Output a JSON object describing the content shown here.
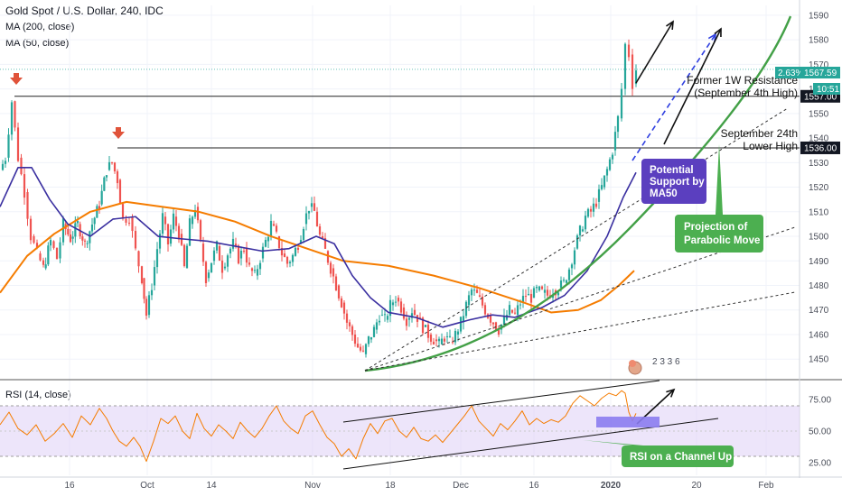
{
  "header": {
    "title": "Gold Spot / U.S. Dollar, 240, IDC",
    "ma200": "MA (200, close)",
    "ma50": "MA (50, close)",
    "rsi": "RSI (14, close)"
  },
  "chart_data": [
    {
      "type": "candlestick",
      "title": "Gold Spot / U.S. Dollar, 240, IDC",
      "x_ticks": [
        "16",
        "Oct",
        "14",
        "Nov",
        "18",
        "Dec",
        "16",
        "2020",
        "20",
        "Feb"
      ],
      "y_ticks": [
        1450,
        1460,
        1470,
        1480,
        1490,
        1500,
        1510,
        1520,
        1530,
        1540,
        1550,
        1560,
        1570,
        1580,
        1590
      ],
      "ylim": [
        1442,
        1594
      ],
      "series": [
        {
          "name": "MA (200, close)",
          "color": "#f57c00"
        },
        {
          "name": "MA (50, close)",
          "color": "#3a2fa0"
        }
      ],
      "price_path": [
        {
          "x": 0,
          "y": 1527
        },
        {
          "x": 6,
          "y": 1532
        },
        {
          "x": 13,
          "y": 1555
        },
        {
          "x": 20,
          "y": 1532
        },
        {
          "x": 27,
          "y": 1518
        },
        {
          "x": 34,
          "y": 1500
        },
        {
          "x": 41,
          "y": 1493
        },
        {
          "x": 48,
          "y": 1487
        },
        {
          "x": 56,
          "y": 1498
        },
        {
          "x": 63,
          "y": 1491
        },
        {
          "x": 70,
          "y": 1505
        },
        {
          "x": 78,
          "y": 1499
        },
        {
          "x": 86,
          "y": 1505
        },
        {
          "x": 94,
          "y": 1497
        },
        {
          "x": 102,
          "y": 1505
        },
        {
          "x": 110,
          "y": 1513
        },
        {
          "x": 118,
          "y": 1527
        },
        {
          "x": 124,
          "y": 1530
        },
        {
          "x": 130,
          "y": 1523
        },
        {
          "x": 136,
          "y": 1507
        },
        {
          "x": 143,
          "y": 1508
        },
        {
          "x": 150,
          "y": 1494
        },
        {
          "x": 157,
          "y": 1483
        },
        {
          "x": 162,
          "y": 1468
        },
        {
          "x": 168,
          "y": 1480
        },
        {
          "x": 174,
          "y": 1495
        },
        {
          "x": 180,
          "y": 1508
        },
        {
          "x": 186,
          "y": 1497
        },
        {
          "x": 192,
          "y": 1508
        },
        {
          "x": 198,
          "y": 1501
        },
        {
          "x": 204,
          "y": 1487
        },
        {
          "x": 210,
          "y": 1505
        },
        {
          "x": 216,
          "y": 1512
        },
        {
          "x": 222,
          "y": 1497
        },
        {
          "x": 228,
          "y": 1483
        },
        {
          "x": 234,
          "y": 1490
        },
        {
          "x": 240,
          "y": 1496
        },
        {
          "x": 246,
          "y": 1487
        },
        {
          "x": 252,
          "y": 1493
        },
        {
          "x": 258,
          "y": 1497
        },
        {
          "x": 264,
          "y": 1491
        },
        {
          "x": 270,
          "y": 1495
        },
        {
          "x": 276,
          "y": 1487
        },
        {
          "x": 282,
          "y": 1484
        },
        {
          "x": 288,
          "y": 1491
        },
        {
          "x": 294,
          "y": 1498
        },
        {
          "x": 300,
          "y": 1505
        },
        {
          "x": 306,
          "y": 1500
        },
        {
          "x": 312,
          "y": 1493
        },
        {
          "x": 318,
          "y": 1489
        },
        {
          "x": 324,
          "y": 1492
        },
        {
          "x": 330,
          "y": 1497
        },
        {
          "x": 336,
          "y": 1505
        },
        {
          "x": 342,
          "y": 1512
        },
        {
          "x": 348,
          "y": 1510
        },
        {
          "x": 354,
          "y": 1500
        },
        {
          "x": 360,
          "y": 1494
        },
        {
          "x": 366,
          "y": 1487
        },
        {
          "x": 372,
          "y": 1480
        },
        {
          "x": 378,
          "y": 1473
        },
        {
          "x": 384,
          "y": 1465
        },
        {
          "x": 390,
          "y": 1460
        },
        {
          "x": 396,
          "y": 1455
        },
        {
          "x": 402,
          "y": 1452
        },
        {
          "x": 408,
          "y": 1458
        },
        {
          "x": 414,
          "y": 1462
        },
        {
          "x": 420,
          "y": 1468
        },
        {
          "x": 426,
          "y": 1466
        },
        {
          "x": 432,
          "y": 1472
        },
        {
          "x": 438,
          "y": 1475
        },
        {
          "x": 444,
          "y": 1471
        },
        {
          "x": 450,
          "y": 1466
        },
        {
          "x": 456,
          "y": 1470
        },
        {
          "x": 462,
          "y": 1467
        },
        {
          "x": 468,
          "y": 1463
        },
        {
          "x": 474,
          "y": 1460
        },
        {
          "x": 480,
          "y": 1458
        },
        {
          "x": 486,
          "y": 1456
        },
        {
          "x": 492,
          "y": 1459
        },
        {
          "x": 498,
          "y": 1457
        },
        {
          "x": 504,
          "y": 1460
        },
        {
          "x": 510,
          "y": 1465
        },
        {
          "x": 516,
          "y": 1472
        },
        {
          "x": 522,
          "y": 1478
        },
        {
          "x": 528,
          "y": 1476
        },
        {
          "x": 534,
          "y": 1472
        },
        {
          "x": 540,
          "y": 1468
        },
        {
          "x": 546,
          "y": 1465
        },
        {
          "x": 552,
          "y": 1462
        },
        {
          "x": 558,
          "y": 1466
        },
        {
          "x": 564,
          "y": 1470
        },
        {
          "x": 570,
          "y": 1468
        },
        {
          "x": 576,
          "y": 1473
        },
        {
          "x": 582,
          "y": 1476
        },
        {
          "x": 588,
          "y": 1475
        },
        {
          "x": 594,
          "y": 1478
        },
        {
          "x": 600,
          "y": 1477
        },
        {
          "x": 606,
          "y": 1476
        },
        {
          "x": 612,
          "y": 1478
        },
        {
          "x": 618,
          "y": 1479
        },
        {
          "x": 624,
          "y": 1481
        },
        {
          "x": 630,
          "y": 1487
        },
        {
          "x": 636,
          "y": 1495
        },
        {
          "x": 642,
          "y": 1502
        },
        {
          "x": 648,
          "y": 1508
        },
        {
          "x": 654,
          "y": 1510
        },
        {
          "x": 660,
          "y": 1514
        },
        {
          "x": 666,
          "y": 1520
        },
        {
          "x": 672,
          "y": 1527
        },
        {
          "x": 678,
          "y": 1535
        },
        {
          "x": 684,
          "y": 1548
        },
        {
          "x": 688,
          "y": 1560
        },
        {
          "x": 692,
          "y": 1578
        },
        {
          "x": 696,
          "y": 1574
        },
        {
          "x": 700,
          "y": 1562
        },
        {
          "x": 704,
          "y": 1568
        }
      ],
      "ma200_path": [
        {
          "x": 0,
          "y": 1477
        },
        {
          "x": 30,
          "y": 1492
        },
        {
          "x": 60,
          "y": 1501
        },
        {
          "x": 100,
          "y": 1510
        },
        {
          "x": 140,
          "y": 1514
        },
        {
          "x": 180,
          "y": 1512
        },
        {
          "x": 220,
          "y": 1510
        },
        {
          "x": 260,
          "y": 1506
        },
        {
          "x": 300,
          "y": 1500
        },
        {
          "x": 340,
          "y": 1495
        },
        {
          "x": 380,
          "y": 1490
        },
        {
          "x": 430,
          "y": 1488
        },
        {
          "x": 480,
          "y": 1484
        },
        {
          "x": 530,
          "y": 1479
        },
        {
          "x": 580,
          "y": 1473
        },
        {
          "x": 610,
          "y": 1469
        },
        {
          "x": 640,
          "y": 1470
        },
        {
          "x": 665,
          "y": 1474
        },
        {
          "x": 685,
          "y": 1480
        },
        {
          "x": 702,
          "y": 1486
        }
      ],
      "ma50_path": [
        {
          "x": 0,
          "y": 1512
        },
        {
          "x": 20,
          "y": 1528
        },
        {
          "x": 35,
          "y": 1528
        },
        {
          "x": 55,
          "y": 1515
        },
        {
          "x": 75,
          "y": 1505
        },
        {
          "x": 100,
          "y": 1500
        },
        {
          "x": 125,
          "y": 1507
        },
        {
          "x": 150,
          "y": 1508
        },
        {
          "x": 175,
          "y": 1500
        },
        {
          "x": 200,
          "y": 1499
        },
        {
          "x": 230,
          "y": 1498
        },
        {
          "x": 260,
          "y": 1496
        },
        {
          "x": 290,
          "y": 1494
        },
        {
          "x": 320,
          "y": 1495
        },
        {
          "x": 350,
          "y": 1500
        },
        {
          "x": 370,
          "y": 1497
        },
        {
          "x": 390,
          "y": 1484
        },
        {
          "x": 410,
          "y": 1475
        },
        {
          "x": 430,
          "y": 1469
        },
        {
          "x": 460,
          "y": 1467
        },
        {
          "x": 490,
          "y": 1463
        },
        {
          "x": 520,
          "y": 1466
        },
        {
          "x": 545,
          "y": 1468
        },
        {
          "x": 570,
          "y": 1467
        },
        {
          "x": 600,
          "y": 1471
        },
        {
          "x": 625,
          "y": 1476
        },
        {
          "x": 650,
          "y": 1486
        },
        {
          "x": 672,
          "y": 1500
        },
        {
          "x": 690,
          "y": 1516
        },
        {
          "x": 704,
          "y": 1526
        }
      ],
      "levels": [
        {
          "label": "1557.00",
          "value": 1557
        },
        {
          "label": "1536.00",
          "value": 1536
        }
      ],
      "current_price_label": "1567.59",
      "change_label": "2.63%",
      "countdown_label": "10:51",
      "annotations": {
        "resistance_1": "Former 1W Resistance",
        "resistance_2": "(September 4th High)",
        "lower_high_1": "September 24th",
        "lower_high_2": "Lower High",
        "support_1": "Potential",
        "support_2": "Support by",
        "support_3": "MA50",
        "parabolic_1": "Projection of",
        "parabolic_2": "Parabolic Move",
        "events": "2 3 3 6"
      },
      "colors": {
        "up": "#26a69a",
        "down": "#ef5350",
        "ma200": "#f57c00",
        "ma50": "#3a2fa0",
        "parabolic": "#43a047",
        "support_box": "#5b3fbf",
        "parabolic_box": "#4caf50",
        "arrow_marker": "#e0533a",
        "price_tag": "#26a69a"
      }
    },
    {
      "type": "line",
      "title": "RSI (14, close)",
      "y_ticks": [
        25,
        50,
        75
      ],
      "ylim": [
        15,
        90
      ],
      "band": [
        30,
        70
      ],
      "rsi_path": [
        {
          "x": 0,
          "y": 55
        },
        {
          "x": 10,
          "y": 65
        },
        {
          "x": 20,
          "y": 52
        },
        {
          "x": 30,
          "y": 47
        },
        {
          "x": 40,
          "y": 55
        },
        {
          "x": 50,
          "y": 42
        },
        {
          "x": 60,
          "y": 48
        },
        {
          "x": 70,
          "y": 56
        },
        {
          "x": 80,
          "y": 45
        },
        {
          "x": 90,
          "y": 62
        },
        {
          "x": 100,
          "y": 55
        },
        {
          "x": 110,
          "y": 68
        },
        {
          "x": 118,
          "y": 60
        },
        {
          "x": 125,
          "y": 50
        },
        {
          "x": 132,
          "y": 42
        },
        {
          "x": 140,
          "y": 38
        },
        {
          "x": 148,
          "y": 45
        },
        {
          "x": 155,
          "y": 38
        },
        {
          "x": 162,
          "y": 26
        },
        {
          "x": 170,
          "y": 42
        },
        {
          "x": 178,
          "y": 60
        },
        {
          "x": 186,
          "y": 56
        },
        {
          "x": 194,
          "y": 62
        },
        {
          "x": 202,
          "y": 50
        },
        {
          "x": 210,
          "y": 44
        },
        {
          "x": 218,
          "y": 64
        },
        {
          "x": 226,
          "y": 52
        },
        {
          "x": 234,
          "y": 46
        },
        {
          "x": 242,
          "y": 55
        },
        {
          "x": 250,
          "y": 50
        },
        {
          "x": 258,
          "y": 44
        },
        {
          "x": 266,
          "y": 57
        },
        {
          "x": 274,
          "y": 50
        },
        {
          "x": 282,
          "y": 45
        },
        {
          "x": 290,
          "y": 52
        },
        {
          "x": 298,
          "y": 62
        },
        {
          "x": 306,
          "y": 70
        },
        {
          "x": 314,
          "y": 58
        },
        {
          "x": 322,
          "y": 52
        },
        {
          "x": 330,
          "y": 48
        },
        {
          "x": 338,
          "y": 62
        },
        {
          "x": 346,
          "y": 66
        },
        {
          "x": 354,
          "y": 55
        },
        {
          "x": 362,
          "y": 45
        },
        {
          "x": 370,
          "y": 40
        },
        {
          "x": 378,
          "y": 30
        },
        {
          "x": 386,
          "y": 36
        },
        {
          "x": 394,
          "y": 28
        },
        {
          "x": 402,
          "y": 44
        },
        {
          "x": 410,
          "y": 56
        },
        {
          "x": 418,
          "y": 48
        },
        {
          "x": 426,
          "y": 58
        },
        {
          "x": 434,
          "y": 60
        },
        {
          "x": 442,
          "y": 50
        },
        {
          "x": 450,
          "y": 45
        },
        {
          "x": 458,
          "y": 53
        },
        {
          "x": 466,
          "y": 44
        },
        {
          "x": 474,
          "y": 42
        },
        {
          "x": 482,
          "y": 47
        },
        {
          "x": 490,
          "y": 41
        },
        {
          "x": 498,
          "y": 48
        },
        {
          "x": 506,
          "y": 55
        },
        {
          "x": 514,
          "y": 62
        },
        {
          "x": 522,
          "y": 70
        },
        {
          "x": 530,
          "y": 58
        },
        {
          "x": 538,
          "y": 52
        },
        {
          "x": 546,
          "y": 46
        },
        {
          "x": 554,
          "y": 56
        },
        {
          "x": 562,
          "y": 51
        },
        {
          "x": 570,
          "y": 58
        },
        {
          "x": 578,
          "y": 66
        },
        {
          "x": 586,
          "y": 55
        },
        {
          "x": 594,
          "y": 60
        },
        {
          "x": 602,
          "y": 56
        },
        {
          "x": 610,
          "y": 59
        },
        {
          "x": 618,
          "y": 57
        },
        {
          "x": 626,
          "y": 62
        },
        {
          "x": 634,
          "y": 72
        },
        {
          "x": 642,
          "y": 78
        },
        {
          "x": 650,
          "y": 74
        },
        {
          "x": 658,
          "y": 70
        },
        {
          "x": 666,
          "y": 76
        },
        {
          "x": 674,
          "y": 80
        },
        {
          "x": 682,
          "y": 78
        },
        {
          "x": 688,
          "y": 82
        },
        {
          "x": 692,
          "y": 80
        },
        {
          "x": 696,
          "y": 65
        },
        {
          "x": 700,
          "y": 58
        },
        {
          "x": 704,
          "y": 64
        }
      ],
      "label": "RSI on a Channel Up",
      "colors": {
        "line": "#f57c00",
        "band": "#e1d4f7",
        "label_box": "#4caf50",
        "highlight": "#8b7cf0"
      }
    }
  ]
}
